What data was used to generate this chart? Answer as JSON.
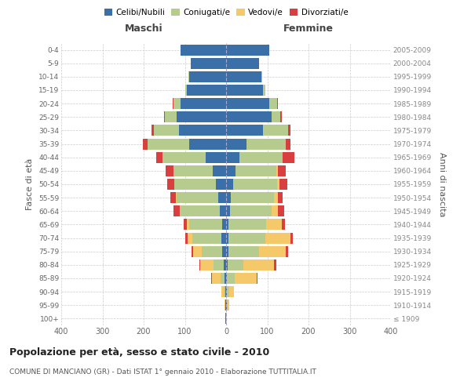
{
  "age_groups": [
    "100+",
    "95-99",
    "90-94",
    "85-89",
    "80-84",
    "75-79",
    "70-74",
    "65-69",
    "60-64",
    "55-59",
    "50-54",
    "45-49",
    "40-44",
    "35-39",
    "30-34",
    "25-29",
    "20-24",
    "15-19",
    "10-14",
    "5-9",
    "0-4"
  ],
  "birth_years": [
    "≤ 1909",
    "1910-1914",
    "1915-1919",
    "1920-1924",
    "1925-1929",
    "1930-1934",
    "1935-1939",
    "1940-1944",
    "1945-1949",
    "1950-1954",
    "1955-1959",
    "1960-1964",
    "1965-1969",
    "1970-1974",
    "1975-1979",
    "1980-1984",
    "1985-1989",
    "1990-1994",
    "1995-1999",
    "2000-2004",
    "2005-2009"
  ],
  "male": {
    "celibi": [
      1,
      1,
      2,
      3,
      5,
      10,
      12,
      10,
      15,
      20,
      25,
      32,
      50,
      90,
      115,
      120,
      110,
      95,
      90,
      85,
      110
    ],
    "coniugati": [
      0,
      1,
      3,
      10,
      25,
      50,
      70,
      80,
      95,
      100,
      100,
      95,
      105,
      100,
      60,
      28,
      18,
      5,
      2,
      0,
      0
    ],
    "vedovi": [
      0,
      1,
      6,
      22,
      32,
      20,
      12,
      6,
      3,
      2,
      1,
      0,
      0,
      0,
      0,
      0,
      0,
      0,
      0,
      0,
      0
    ],
    "divorziati": [
      0,
      0,
      0,
      1,
      2,
      3,
      6,
      6,
      14,
      14,
      16,
      20,
      14,
      12,
      6,
      3,
      2,
      0,
      0,
      0,
      0
    ]
  },
  "female": {
    "nubili": [
      0,
      1,
      1,
      2,
      3,
      5,
      6,
      6,
      10,
      12,
      18,
      22,
      32,
      50,
      90,
      110,
      105,
      90,
      85,
      80,
      105
    ],
    "coniugate": [
      0,
      2,
      6,
      18,
      38,
      75,
      90,
      92,
      100,
      105,
      105,
      100,
      105,
      95,
      60,
      22,
      18,
      6,
      2,
      0,
      0
    ],
    "vedove": [
      0,
      4,
      12,
      55,
      75,
      65,
      60,
      38,
      16,
      9,
      6,
      3,
      1,
      0,
      0,
      0,
      0,
      0,
      0,
      0,
      0
    ],
    "divorziate": [
      0,
      0,
      0,
      2,
      5,
      6,
      6,
      6,
      14,
      12,
      20,
      20,
      28,
      12,
      6,
      4,
      3,
      0,
      0,
      0,
      0
    ]
  },
  "colors": {
    "celibi": "#3a6fa8",
    "coniugati": "#b5cc8e",
    "vedovi": "#f5c96a",
    "divorziati": "#d93f3f"
  },
  "title": "Popolazione per età, sesso e stato civile - 2010",
  "subtitle": "COMUNE DI MANCIANO (GR) - Dati ISTAT 1° gennaio 2010 - Elaborazione TUTTITALIA.IT",
  "xlabel_left": "Maschi",
  "xlabel_right": "Femmine",
  "ylabel_left": "Fasce di età",
  "ylabel_right": "Anni di nascita",
  "xlim": 400,
  "legend_labels": [
    "Celibi/Nubili",
    "Coniugati/e",
    "Vedovi/e",
    "Divorziati/e"
  ],
  "background_color": "#ffffff"
}
